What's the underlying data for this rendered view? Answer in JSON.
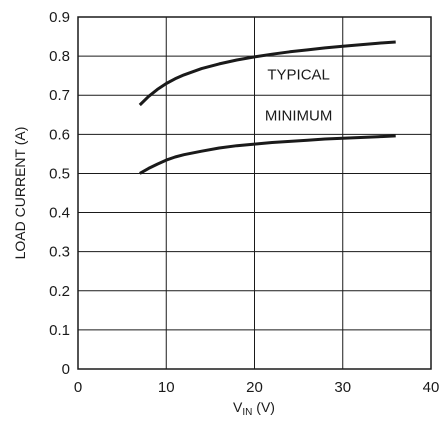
{
  "chart_data": {
    "type": "line",
    "xlabel": {
      "main": "V",
      "sub": "IN",
      "unit": " (V)"
    },
    "ylabel": "LOAD CURRENT (A)",
    "xlim": [
      0,
      40
    ],
    "ylim": [
      0,
      0.9
    ],
    "xticks": [
      "0",
      "10",
      "20",
      "30",
      "40"
    ],
    "yticks": [
      "0",
      "0.1",
      "0.2",
      "0.3",
      "0.4",
      "0.5",
      "0.6",
      "0.7",
      "0.8",
      "0.9"
    ],
    "grid": true,
    "series": [
      {
        "name": "TYPICAL",
        "x": [
          7,
          8,
          9,
          10,
          11,
          12,
          14,
          16,
          18,
          20,
          22,
          24,
          26,
          28,
          30,
          32,
          34,
          36
        ],
        "y": [
          0.675,
          0.697,
          0.715,
          0.73,
          0.742,
          0.752,
          0.768,
          0.78,
          0.79,
          0.798,
          0.805,
          0.811,
          0.816,
          0.821,
          0.825,
          0.829,
          0.833,
          0.836
        ]
      },
      {
        "name": "MINIMUM",
        "x": [
          7,
          8,
          9,
          10,
          11,
          12,
          14,
          16,
          18,
          20,
          22,
          24,
          26,
          28,
          30,
          32,
          34,
          36
        ],
        "y": [
          0.5,
          0.513,
          0.524,
          0.534,
          0.542,
          0.548,
          0.557,
          0.565,
          0.571,
          0.575,
          0.579,
          0.582,
          0.585,
          0.588,
          0.59,
          0.592,
          0.594,
          0.596
        ]
      }
    ],
    "annotations": [
      {
        "text": "TYPICAL",
        "x": 25,
        "y": 0.74
      },
      {
        "text": "MINIMUM",
        "x": 25,
        "y": 0.635
      }
    ]
  }
}
